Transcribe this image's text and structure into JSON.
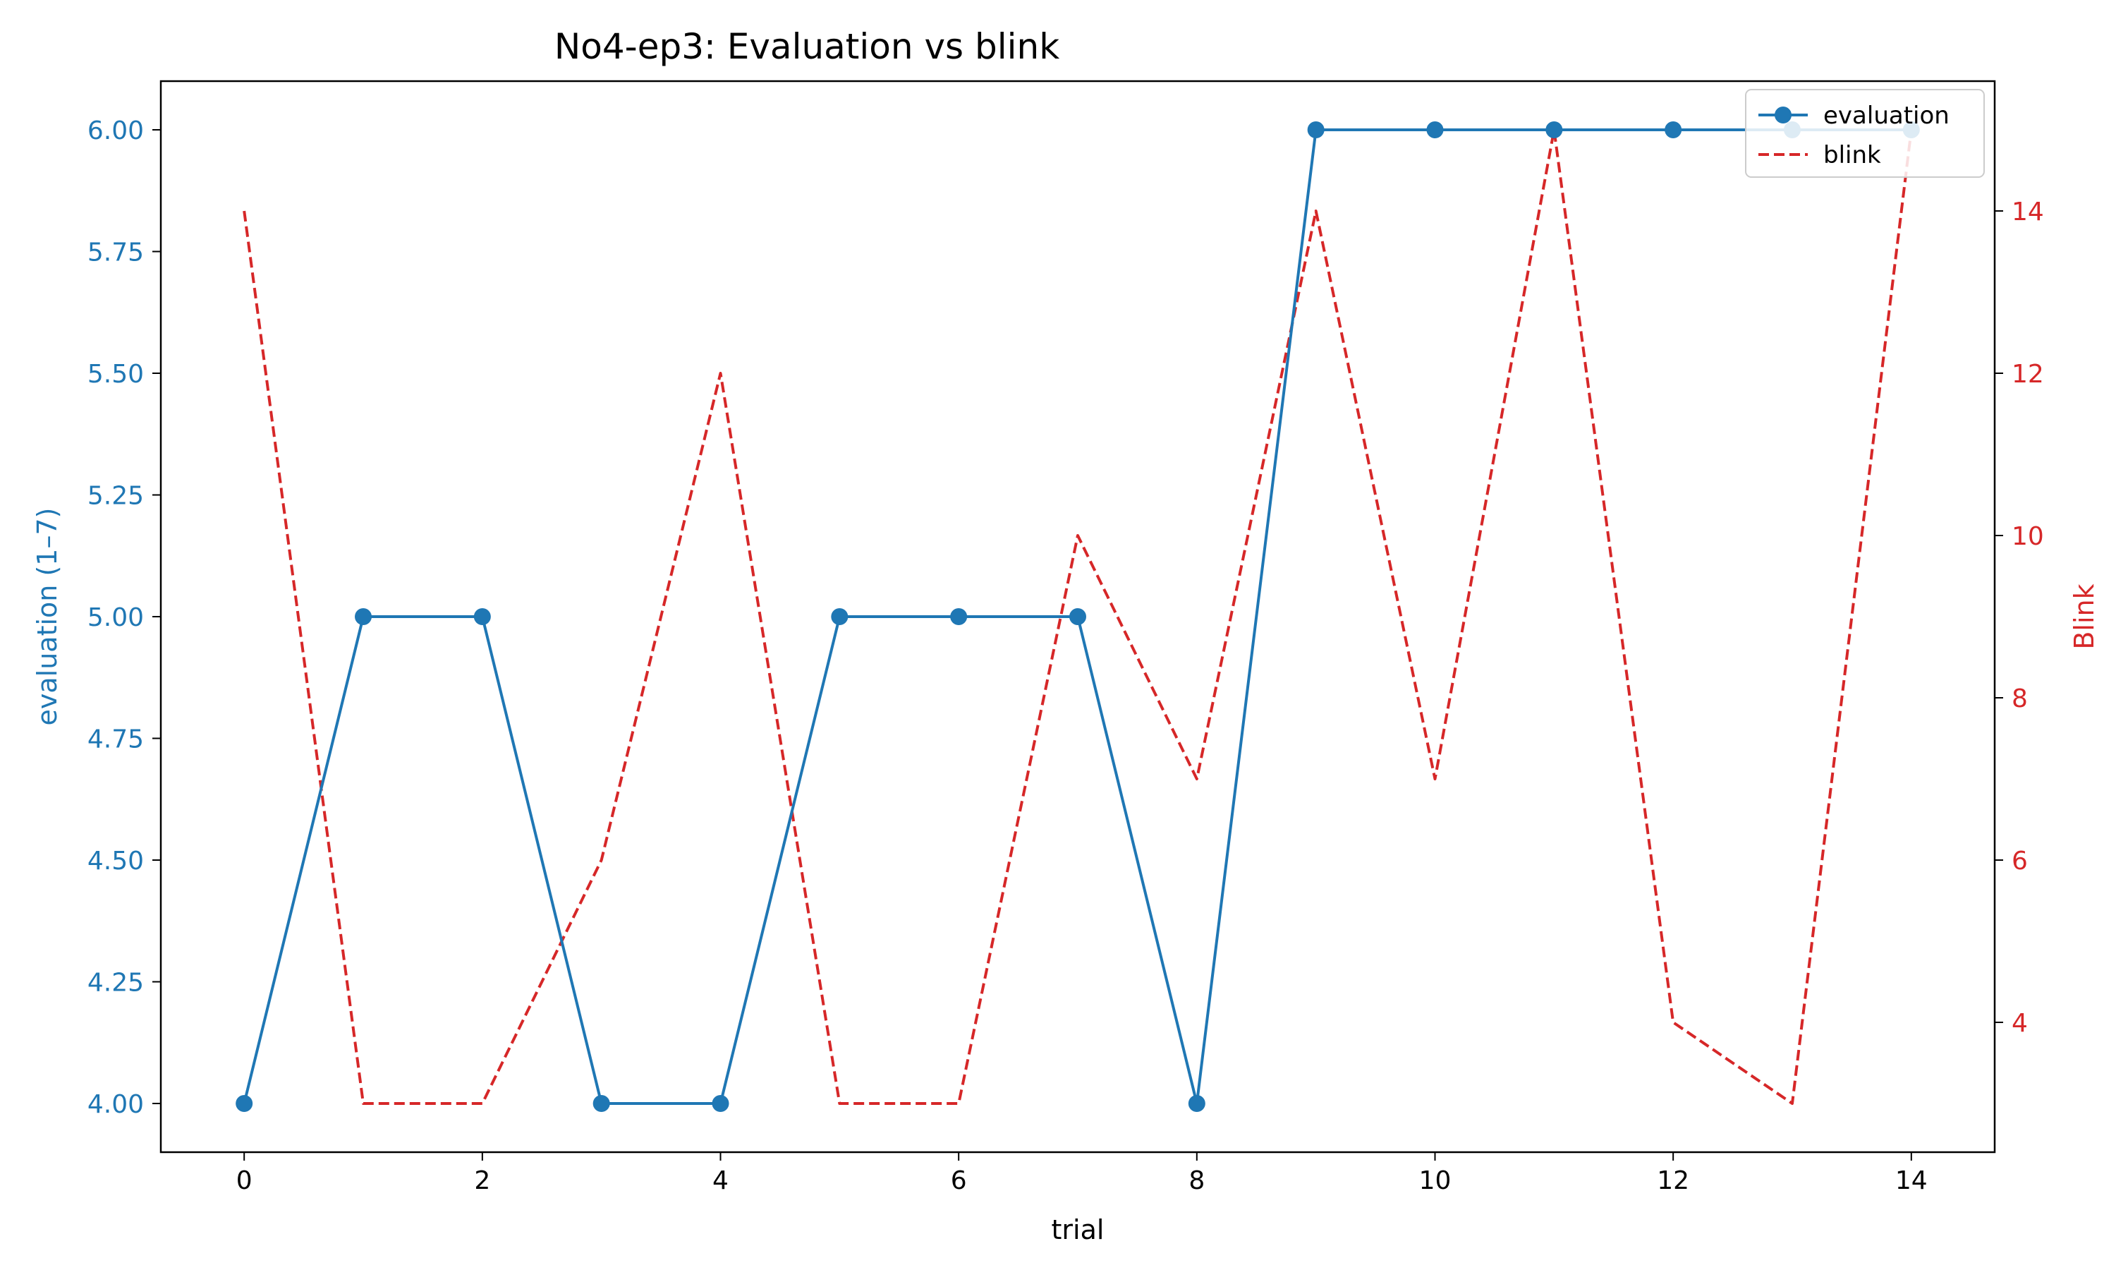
{
  "colors": {
    "evaluation": "#1f77b4",
    "blink": "#d62728",
    "axis": "#000000",
    "background": "#ffffff"
  },
  "chart_data": {
    "type": "line",
    "title": "No4-ep3: Evaluation vs blink",
    "xlabel": "trial",
    "ylabel_left": "evaluation (1–7)",
    "ylabel_right": "Blink",
    "x": [
      0,
      1,
      2,
      3,
      4,
      5,
      6,
      7,
      8,
      9,
      10,
      11,
      12,
      13,
      14
    ],
    "xlim": [
      -0.7,
      14.7
    ],
    "xticks": [
      0,
      2,
      4,
      6,
      8,
      10,
      12,
      14
    ],
    "ylim_left": [
      3.9,
      6.1
    ],
    "yticks_left": [
      "4.00",
      "4.25",
      "4.50",
      "4.75",
      "5.00",
      "5.25",
      "5.50",
      "5.75",
      "6.00"
    ],
    "ylim_right": [
      2.4,
      15.6
    ],
    "yticks_right": [
      4,
      6,
      8,
      10,
      12,
      14
    ],
    "grid": false,
    "legend_position": "top-right",
    "series": [
      {
        "name": "evaluation",
        "axis": "left",
        "style": "solid-with-markers",
        "values": [
          4,
          5,
          5,
          4,
          4,
          5,
          5,
          5,
          4,
          6,
          6,
          6,
          6,
          6,
          6
        ]
      },
      {
        "name": "blink",
        "axis": "right",
        "style": "dashed",
        "values": [
          14,
          3,
          3,
          6,
          12,
          3,
          3,
          10,
          7,
          14,
          7,
          15,
          4,
          3,
          15
        ]
      }
    ]
  }
}
